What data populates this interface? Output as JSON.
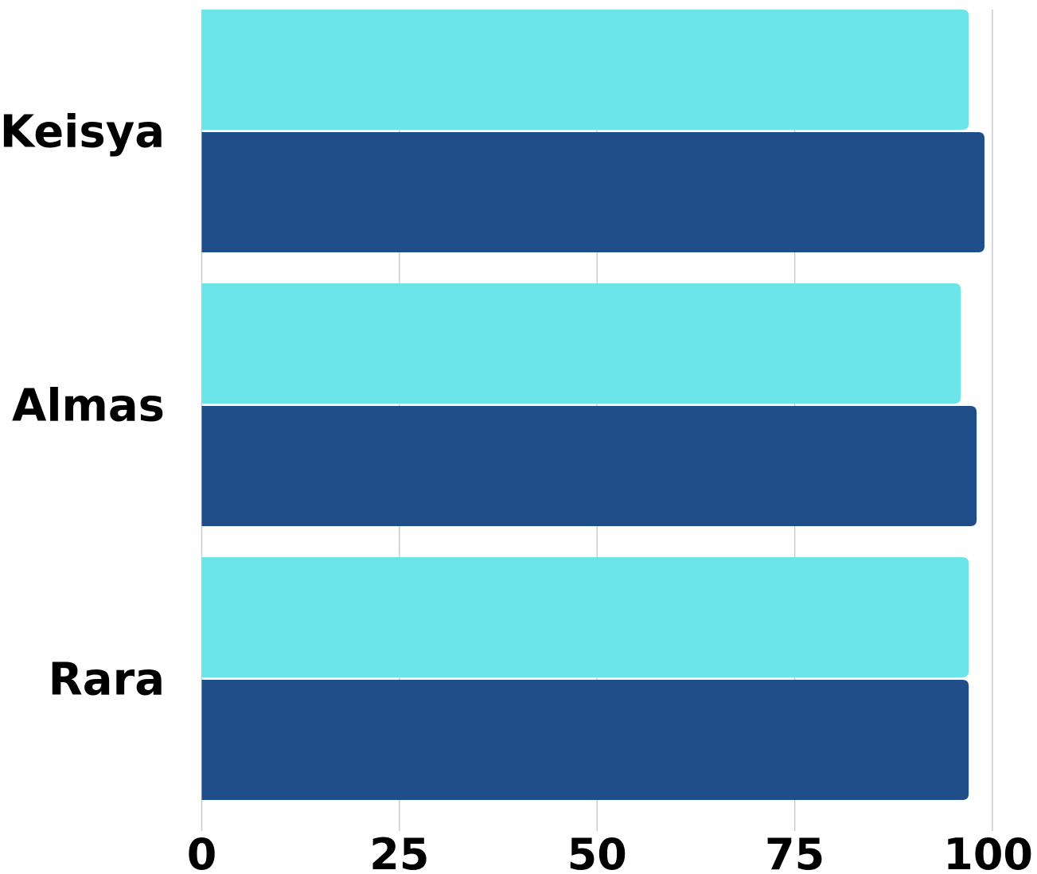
{
  "chart_data": {
    "type": "bar",
    "orientation": "horizontal",
    "categories": [
      "Keisya",
      "Almas",
      "Rara"
    ],
    "series": [
      {
        "values": [
          97,
          96,
          97
        ],
        "color": "#6ce5e8"
      },
      {
        "values": [
          99,
          98,
          97
        ],
        "color": "#1f4e89"
      }
    ],
    "x_ticks": [
      "0",
      "25",
      "50",
      "75",
      "100"
    ],
    "xlim": [
      0,
      100
    ],
    "grid": "vertical",
    "title": "",
    "xlabel": "",
    "ylabel": ""
  }
}
